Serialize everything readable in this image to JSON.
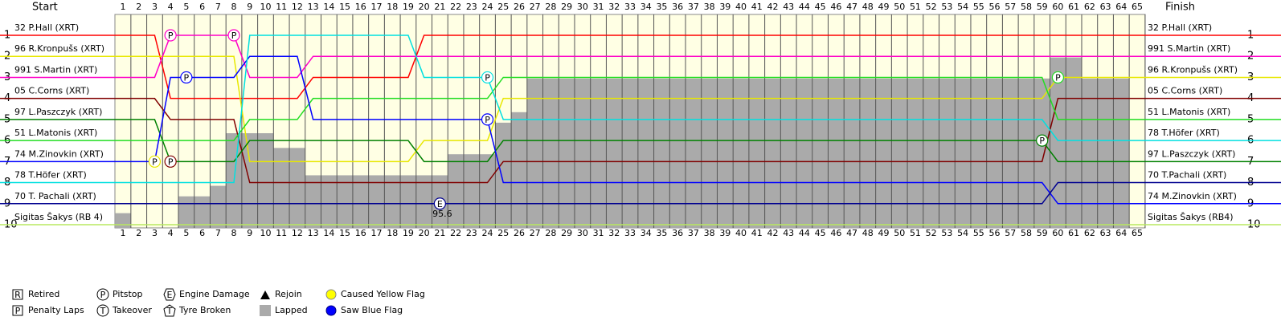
{
  "chart_data": {
    "type": "lapchart",
    "start_title": "Start",
    "finish_title": "Finish",
    "x": [
      1,
      2,
      3,
      4,
      5,
      6,
      7,
      8,
      9,
      10,
      11,
      12,
      13,
      14,
      15,
      16,
      17,
      18,
      19,
      20,
      21,
      22,
      23,
      24,
      25,
      26,
      27,
      28,
      29,
      30,
      31,
      32,
      33,
      34,
      35,
      36,
      37,
      38,
      39,
      40,
      41,
      42,
      43,
      44,
      45,
      46,
      47,
      48,
      49,
      50,
      51,
      52,
      53,
      54,
      55,
      56,
      57,
      58,
      59,
      60,
      61,
      62,
      63,
      64,
      65
    ],
    "xlim": [
      1,
      65
    ],
    "ylim": [
      1,
      10
    ],
    "yticks": [
      1,
      2,
      3,
      4,
      5,
      6,
      7,
      8,
      9,
      10
    ],
    "series": [
      {
        "name": "32 P.Hall (XRT)",
        "color": "#ff0000",
        "values": [
          1,
          1,
          1,
          4,
          4,
          4,
          4,
          4,
          4,
          4,
          4,
          4,
          3,
          3,
          3,
          3,
          3,
          3,
          3,
          1,
          1,
          1,
          1,
          1,
          1,
          1,
          1,
          1,
          1,
          1,
          1,
          1,
          1,
          1,
          1,
          1,
          1,
          1,
          1,
          1,
          1,
          1,
          1,
          1,
          1,
          1,
          1,
          1,
          1,
          1,
          1,
          1,
          1,
          1,
          1,
          1,
          1,
          1,
          1,
          1,
          1,
          1,
          1,
          1,
          1
        ]
      },
      {
        "name": "96 R.Kronpušs (XRT)",
        "color": "#e8e800",
        "values": [
          2,
          2,
          2,
          2,
          2,
          2,
          2,
          2,
          7,
          7,
          7,
          7,
          7,
          7,
          7,
          7,
          7,
          7,
          7,
          6,
          6,
          6,
          6,
          6,
          4,
          4,
          4,
          4,
          4,
          4,
          4,
          4,
          4,
          4,
          4,
          4,
          4,
          4,
          4,
          4,
          4,
          4,
          4,
          4,
          4,
          4,
          4,
          4,
          4,
          4,
          4,
          4,
          4,
          4,
          4,
          4,
          4,
          4,
          4,
          3,
          3,
          3,
          3,
          3,
          3
        ]
      },
      {
        "name": "991 S.Martin (XRT)",
        "color": "#ff00c8",
        "values": [
          3,
          3,
          3,
          1,
          1,
          1,
          1,
          1,
          3,
          3,
          3,
          3,
          2,
          2,
          2,
          2,
          2,
          2,
          2,
          2,
          2,
          2,
          2,
          2,
          2,
          2,
          2,
          2,
          2,
          2,
          2,
          2,
          2,
          2,
          2,
          2,
          2,
          2,
          2,
          2,
          2,
          2,
          2,
          2,
          2,
          2,
          2,
          2,
          2,
          2,
          2,
          2,
          2,
          2,
          2,
          2,
          2,
          2,
          2,
          2,
          2,
          2,
          2,
          2,
          2
        ]
      },
      {
        "name": "05 C.Corns (XRT)",
        "color": "#800000",
        "values": [
          4,
          4,
          4,
          5,
          5,
          5,
          5,
          5,
          8,
          8,
          8,
          8,
          8,
          8,
          8,
          8,
          8,
          8,
          8,
          8,
          8,
          8,
          8,
          8,
          7,
          7,
          7,
          7,
          7,
          7,
          7,
          7,
          7,
          7,
          7,
          7,
          7,
          7,
          7,
          7,
          7,
          7,
          7,
          7,
          7,
          7,
          7,
          7,
          7,
          7,
          7,
          7,
          7,
          7,
          7,
          7,
          7,
          7,
          7,
          4,
          4,
          4,
          4,
          4,
          4
        ]
      },
      {
        "name": "97 L.Paszczyk (XRT)",
        "color": "#008000",
        "values": [
          5,
          5,
          5,
          7,
          7,
          7,
          7,
          7,
          6,
          6,
          6,
          6,
          6,
          6,
          6,
          6,
          6,
          6,
          6,
          7,
          7,
          7,
          7,
          7,
          6,
          6,
          6,
          6,
          6,
          6,
          6,
          6,
          6,
          6,
          6,
          6,
          6,
          6,
          6,
          6,
          6,
          6,
          6,
          6,
          6,
          6,
          6,
          6,
          6,
          6,
          6,
          6,
          6,
          6,
          6,
          6,
          6,
          6,
          6,
          7,
          7,
          7,
          7,
          7,
          7
        ]
      },
      {
        "name": "51 L.Matonis (XRT)",
        "color": "#22dd22",
        "values": [
          6,
          6,
          6,
          6,
          6,
          6,
          6,
          6,
          5,
          5,
          5,
          5,
          4,
          4,
          4,
          4,
          4,
          4,
          4,
          4,
          4,
          4,
          4,
          4,
          3,
          3,
          3,
          3,
          3,
          3,
          3,
          3,
          3,
          3,
          3,
          3,
          3,
          3,
          3,
          3,
          3,
          3,
          3,
          3,
          3,
          3,
          3,
          3,
          3,
          3,
          3,
          3,
          3,
          3,
          3,
          3,
          3,
          3,
          3,
          5,
          5,
          5,
          5,
          5,
          5
        ]
      },
      {
        "name": "74 M.Zinovkin (XRT)",
        "color": "#0000ff",
        "values": [
          7,
          7,
          7,
          3,
          3,
          3,
          3,
          3,
          2,
          2,
          2,
          2,
          5,
          5,
          5,
          5,
          5,
          5,
          5,
          5,
          5,
          5,
          5,
          5,
          8,
          8,
          8,
          8,
          8,
          8,
          8,
          8,
          8,
          8,
          8,
          8,
          8,
          8,
          8,
          8,
          8,
          8,
          8,
          8,
          8,
          8,
          8,
          8,
          8,
          8,
          8,
          8,
          8,
          8,
          8,
          8,
          8,
          8,
          8,
          9,
          9,
          9,
          9,
          9,
          9
        ]
      },
      {
        "name": "78 T.Höfer (XRT)",
        "color": "#00e0e0",
        "values": [
          8,
          8,
          8,
          8,
          8,
          8,
          8,
          8,
          1,
          1,
          1,
          1,
          1,
          1,
          1,
          1,
          1,
          1,
          1,
          3,
          3,
          3,
          3,
          3,
          5,
          5,
          5,
          5,
          5,
          5,
          5,
          5,
          5,
          5,
          5,
          5,
          5,
          5,
          5,
          5,
          5,
          5,
          5,
          5,
          5,
          5,
          5,
          5,
          5,
          5,
          5,
          5,
          5,
          5,
          5,
          5,
          5,
          5,
          5,
          6,
          6,
          6,
          6,
          6,
          6
        ]
      },
      {
        "name": "70 T. Pachali (XRT)",
        "color": "#000090",
        "values": [
          9,
          9,
          9,
          9,
          9,
          9,
          9,
          9,
          9,
          9,
          9,
          9,
          9,
          9,
          9,
          9,
          9,
          9,
          9,
          9,
          9,
          9,
          9,
          9,
          9,
          9,
          9,
          9,
          9,
          9,
          9,
          9,
          9,
          9,
          9,
          9,
          9,
          9,
          9,
          9,
          9,
          9,
          9,
          9,
          9,
          9,
          9,
          9,
          9,
          9,
          9,
          9,
          9,
          9,
          9,
          9,
          9,
          9,
          9,
          8,
          8,
          8,
          8,
          8,
          8
        ]
      },
      {
        "name": "Sigitas Šakys (RB 4)",
        "color": "#b8e860",
        "values": [
          10,
          10,
          10,
          10,
          10,
          10,
          10,
          10,
          10,
          10,
          10,
          10,
          10,
          10,
          10,
          10,
          10,
          10,
          10,
          10,
          10,
          10,
          10,
          10,
          10,
          10,
          10,
          10,
          10,
          10,
          10,
          10,
          10,
          10,
          10,
          10,
          10,
          10,
          10,
          10,
          10,
          10,
          10,
          10,
          10,
          10,
          10,
          10,
          10,
          10,
          10,
          10,
          10,
          10,
          10,
          10,
          10,
          10,
          10,
          10,
          10,
          10,
          10,
          10,
          10
        ]
      }
    ],
    "finish": [
      "32 P.Hall (XRT)",
      "991 S.Martin (XRT)",
      "96 R.Kronpušs (XRT)",
      "05 C.Corns (XRT)",
      "51 L.Matonis (XRT)",
      "78 T.Höfer (XRT)",
      "97 L.Paszczyk (XRT)",
      "70 T.Pachali (XRT)",
      "74 M.Zinovkin (XRT)",
      "Sigitas Šakys (RB4)"
    ],
    "lapped": [
      0.7,
      0,
      0,
      0,
      1.5,
      1.5,
      2,
      4.5,
      4.5,
      4.5,
      3.8,
      3.8,
      2.5,
      2.5,
      2.5,
      2.5,
      2.5,
      2.5,
      2.5,
      2.5,
      2.5,
      3.5,
      3.5,
      3.5,
      5,
      5.5,
      7.1,
      7.1,
      7.1,
      7.1,
      7.1,
      7.1,
      7.1,
      7.1,
      7.1,
      7.1,
      7.1,
      7.1,
      7.1,
      7.1,
      7.1,
      7.1,
      7.1,
      7.1,
      7.1,
      7.1,
      7.1,
      7.1,
      7.1,
      7.1,
      7.1,
      7.1,
      7.1,
      7.1,
      7.1,
      7.1,
      7.1,
      7.1,
      7.1,
      8.1,
      8.1,
      7.1,
      7.1,
      7.1,
      0
    ],
    "lapped_color": "#aaaaaa",
    "events": [
      {
        "lap": 4,
        "pos": 1,
        "code": "P",
        "color": "#ff00c8"
      },
      {
        "lap": 8,
        "pos": 1,
        "code": "P",
        "color": "#ff00c8"
      },
      {
        "lap": 5,
        "pos": 3,
        "code": "P",
        "color": "#0000ff"
      },
      {
        "lap": 24,
        "pos": 3,
        "code": "P",
        "color": "#00e0e0"
      },
      {
        "lap": 24,
        "pos": 5,
        "code": "P",
        "color": "#0000ff"
      },
      {
        "lap": 3,
        "pos": 7,
        "code": "P",
        "color": "#e8e800"
      },
      {
        "lap": 4,
        "pos": 7,
        "code": "P",
        "color": "#800000"
      },
      {
        "lap": 60,
        "pos": 3,
        "code": "P",
        "color": "#22dd22"
      },
      {
        "lap": 59,
        "pos": 6,
        "code": "P",
        "color": "#008000"
      },
      {
        "lap": 21,
        "pos": 9,
        "code": "E",
        "color": "#000090"
      }
    ],
    "annotation": "95.6",
    "legend": [
      {
        "symbol": "R",
        "label": "Retired"
      },
      {
        "symbol": "P",
        "label": "Penalty Laps"
      },
      {
        "symbol": "P",
        "label": "Pitstop"
      },
      {
        "symbol": "T",
        "label": "Takeover"
      },
      {
        "symbol": "E",
        "label": "Engine Damage"
      },
      {
        "symbol": "T",
        "label": "Tyre Broken"
      },
      {
        "label": "Rejoin"
      },
      {
        "label": "Lapped"
      },
      {
        "label": "Caused Yellow Flag"
      },
      {
        "label": "Saw Blue Flag"
      }
    ]
  }
}
